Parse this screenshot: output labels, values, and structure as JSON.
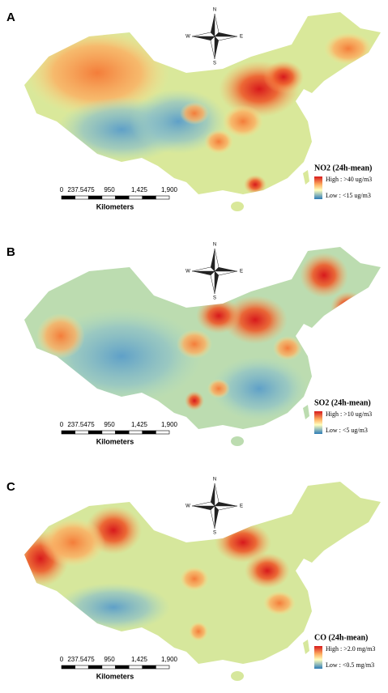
{
  "panels": [
    {
      "label": "A",
      "legend": {
        "title": "NO2 (24h-mean)",
        "high": "High : >40 ug/m3",
        "low": "Low : <15 ug/m3"
      }
    },
    {
      "label": "B",
      "legend": {
        "title": "SO2 (24h-mean)",
        "high": "High : >10 ug/m3",
        "low": "Low : <5 ug/m3"
      }
    },
    {
      "label": "C",
      "legend": {
        "title": "CO (24h-mean)",
        "high": "High : >2.0 mg/m3",
        "low": "Low : <0.5 mg/m3"
      }
    }
  ],
  "compass": {
    "north": "N",
    "south": "S",
    "west": "W",
    "east": "E"
  },
  "scale_bar": {
    "ticks": [
      "0",
      "237.5475",
      "950",
      "1,425",
      "1,900"
    ],
    "unit": "Kilometers"
  }
}
